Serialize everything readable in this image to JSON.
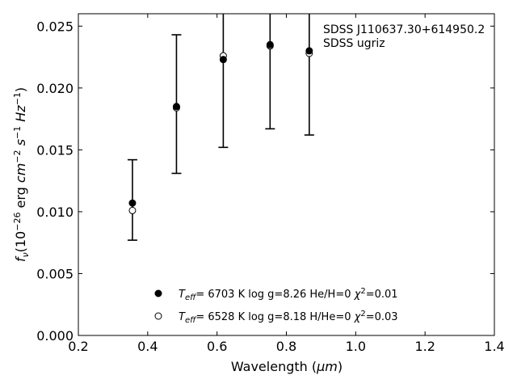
{
  "chart_data": {
    "type": "scatter",
    "xlabel": "Wavelength",
    "xunit": "μm",
    "ylabel_prefix": "f",
    "ylabel_sub": "ν",
    "ylabel_parts": [
      "(10",
      "−26",
      " erg ",
      "cm",
      "−2",
      " ",
      "s",
      "−1",
      " ",
      "Hz",
      "−1",
      ")"
    ],
    "xlim": [
      0.2,
      1.4
    ],
    "ylim": [
      0.0,
      0.026
    ],
    "xticks": [
      0.2,
      0.4,
      0.6,
      0.8,
      1.0,
      1.2,
      1.4
    ],
    "xtick_labels": [
      "0.2",
      "0.4",
      "0.6",
      "0.8",
      "1.0",
      "1.2",
      "1.4"
    ],
    "yticks": [
      0.0,
      0.005,
      0.01,
      0.015,
      0.02,
      0.025
    ],
    "ytick_labels": [
      "0.000",
      "0.005",
      "0.010",
      "0.015",
      "0.020",
      "0.025"
    ],
    "annotation": [
      "SDSS J110637.30+614950.2",
      "SDSS ugriz"
    ],
    "observed": {
      "x": [
        0.356,
        0.483,
        0.618,
        0.753,
        0.866
      ],
      "y": [
        0.0107,
        0.0185,
        0.0223,
        0.0235,
        0.023
      ],
      "yerr_low": [
        0.0077,
        0.0131,
        0.0152,
        0.0167,
        0.0162
      ],
      "yerr_high": [
        0.0142,
        0.0243,
        0.034,
        0.034,
        0.034
      ]
    },
    "series": [
      {
        "marker": "filled-circle",
        "legend": {
          "teff_label": "T",
          "teff_sub": "eff",
          "text": "=  6703 K  log g=8.26  He/H=0  ",
          "chi_label": "χ",
          "chi_sup": "2",
          "chi_value": "=0.01"
        },
        "x": [
          0.356,
          0.483,
          0.618,
          0.753,
          0.866
        ],
        "y": [
          0.0107,
          0.0185,
          0.0223,
          0.0235,
          0.023
        ]
      },
      {
        "marker": "open-circle",
        "legend": {
          "teff_label": "T",
          "teff_sub": "eff",
          "text": "=  6528 K  log g=8.18  H/He=0  ",
          "chi_label": "χ",
          "chi_sup": "2",
          "chi_value": "=0.03"
        },
        "x": [
          0.356,
          0.483,
          0.618,
          0.753,
          0.866
        ],
        "y": [
          0.0101,
          0.0184,
          0.0226,
          0.0234,
          0.0228
        ]
      }
    ],
    "legend_position": "lower-center",
    "colors": {
      "axis": "#000000",
      "marker": "#000000",
      "background": "#ffffff"
    }
  }
}
